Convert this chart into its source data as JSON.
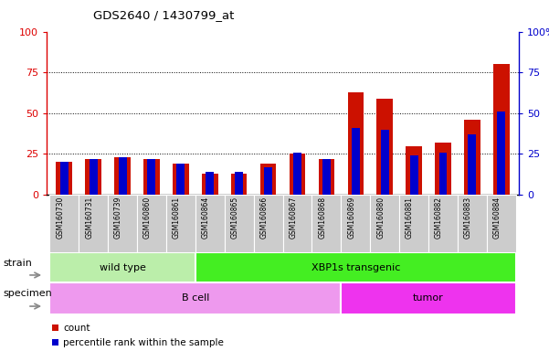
{
  "title": "GDS2640 / 1430799_at",
  "samples": [
    "GSM160730",
    "GSM160731",
    "GSM160739",
    "GSM160860",
    "GSM160861",
    "GSM160864",
    "GSM160865",
    "GSM160866",
    "GSM160867",
    "GSM160868",
    "GSM160869",
    "GSM160880",
    "GSM160881",
    "GSM160882",
    "GSM160883",
    "GSM160884"
  ],
  "count": [
    20,
    22,
    23,
    22,
    19,
    13,
    13,
    19,
    25,
    22,
    63,
    59,
    30,
    32,
    46,
    80
  ],
  "percentile": [
    20,
    22,
    23,
    22,
    19,
    14,
    14,
    17,
    26,
    22,
    41,
    40,
    24,
    26,
    37,
    51
  ],
  "bar_width": 0.55,
  "blue_bar_width": 0.28,
  "ylim": [
    0,
    100
  ],
  "yticks": [
    0,
    25,
    50,
    75,
    100
  ],
  "left_axis_color": "#dd0000",
  "right_axis_color": "#0000cc",
  "bar_color_red": "#cc1100",
  "bar_color_blue": "#0000cc",
  "bg_color": "#ffffff",
  "tick_label_bg": "#cccccc",
  "strain_groups": [
    {
      "label": "wild type",
      "start": 0,
      "end": 4,
      "color": "#bbeeaa"
    },
    {
      "label": "XBP1s transgenic",
      "start": 5,
      "end": 15,
      "color": "#44ee22"
    }
  ],
  "specimen_groups": [
    {
      "label": "B cell",
      "start": 0,
      "end": 9,
      "color": "#ee99ee"
    },
    {
      "label": "tumor",
      "start": 10,
      "end": 15,
      "color": "#ee33ee"
    }
  ],
  "legend_items": [
    {
      "label": "count",
      "color": "#cc1100"
    },
    {
      "label": "percentile rank within the sample",
      "color": "#0000cc"
    }
  ]
}
